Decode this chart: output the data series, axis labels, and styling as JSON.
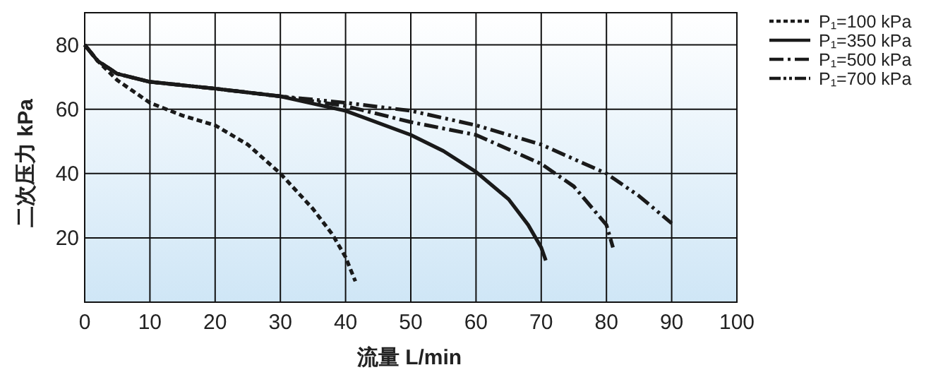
{
  "chart_data": {
    "type": "line",
    "xlabel": "流量 L/min",
    "ylabel": "二次压力 kPa",
    "xlim": [
      0,
      100
    ],
    "xticks": [
      0,
      10,
      20,
      30,
      40,
      50,
      60,
      70,
      80,
      90,
      100
    ],
    "ylim": [
      0,
      90
    ],
    "yticks": [
      20,
      40,
      60,
      80
    ],
    "grid": true,
    "legend": "right",
    "marker": "none",
    "series": [
      {
        "name": "P₁=100 kPa",
        "color": "#1a1a1a",
        "line_style": "dotted",
        "x": [
          0,
          2,
          5,
          10,
          15,
          20,
          25,
          30,
          35,
          38,
          40,
          41.5
        ],
        "values": [
          80,
          75,
          69,
          62,
          58,
          55,
          49,
          40,
          29,
          21,
          14,
          6.5
        ]
      },
      {
        "name": "P₁=350 kPa",
        "color": "#1a1a1a",
        "line_style": "solid",
        "x": [
          0,
          2,
          5,
          10,
          20,
          30,
          40,
          50,
          55,
          60,
          65,
          68,
          70,
          70.7
        ],
        "values": [
          80,
          75,
          71,
          68.5,
          66.4,
          64,
          59.5,
          52,
          47,
          40.5,
          32,
          24,
          17,
          13
        ]
      },
      {
        "name": "P₁=500 kPa",
        "color": "#1a1a1a",
        "line_style": "dashdot",
        "x": [
          0,
          2,
          5,
          10,
          20,
          30,
          35,
          40,
          50,
          60,
          70,
          75,
          80,
          81
        ],
        "values": [
          80,
          75,
          71,
          68.5,
          66.4,
          64,
          62.5,
          61,
          56,
          52,
          43,
          36,
          24,
          17
        ]
      },
      {
        "name": "P₁=700 kPa",
        "color": "#1a1a1a",
        "line_style": "dashdotdot",
        "x": [
          0,
          2,
          5,
          10,
          20,
          30,
          35,
          40,
          50,
          60,
          70,
          80,
          85,
          90
        ],
        "values": [
          80,
          75,
          71,
          68.5,
          66.4,
          64,
          63,
          62,
          59.5,
          55,
          49,
          40,
          33,
          24.5
        ]
      }
    ]
  }
}
